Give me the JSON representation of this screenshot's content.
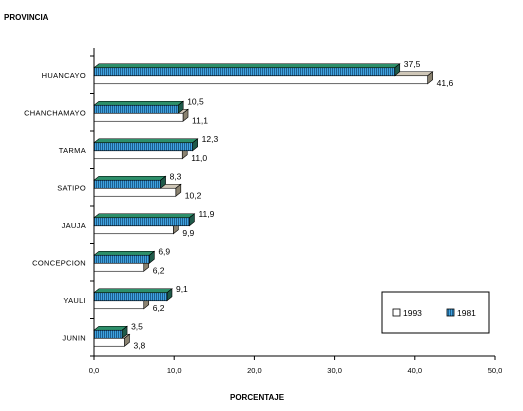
{
  "chart_data": {
    "type": "bar",
    "orientation": "horizontal",
    "title": "PROVINCIA",
    "xlabel": "PORCENTAJE",
    "ylabel": "",
    "xlim": [
      0,
      50
    ],
    "x_ticks": [
      "0,0",
      "10,0",
      "20,0",
      "30,0",
      "40,0",
      "50,0"
    ],
    "categories": [
      "HUANCAYO",
      "CHANCHAMAYO",
      "TARMA",
      "SATIPO",
      "JAUJA",
      "CONCEPCION",
      "YAULI",
      "JUNIN"
    ],
    "series": [
      {
        "name": "1981",
        "color": "#3fa3e0",
        "values": [
          37.5,
          10.5,
          12.3,
          8.3,
          11.9,
          6.9,
          9.1,
          3.5
        ],
        "labels": [
          "37,5",
          "10,5",
          "12,3",
          "8,3",
          "11,9",
          "6,9",
          "9,1",
          "3,5"
        ]
      },
      {
        "name": "1993",
        "color": "#ffffff",
        "values": [
          41.6,
          11.1,
          11.0,
          10.2,
          9.9,
          6.2,
          6.2,
          3.8
        ],
        "labels": [
          "41,6",
          "11,1",
          "11,0",
          "10,2",
          "9,9",
          "6,2",
          "6,2",
          "3,8"
        ]
      }
    ],
    "legend": {
      "placement": "bottom-right",
      "entries": [
        "1993",
        "1981"
      ]
    },
    "grid": false
  }
}
